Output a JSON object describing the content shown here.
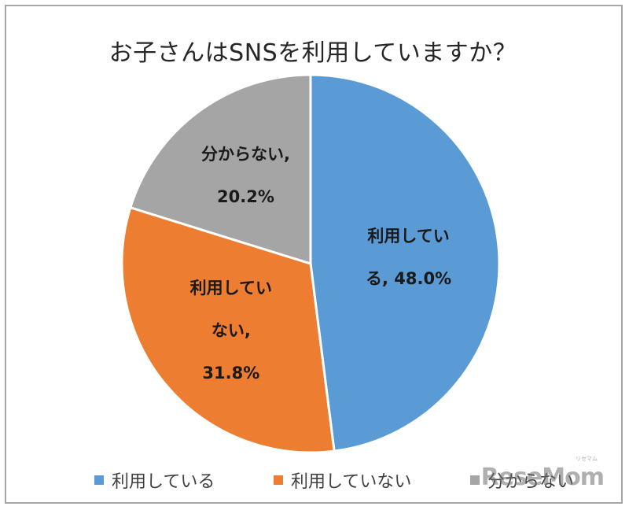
{
  "chart_data": {
    "type": "pie",
    "title": "お子さんはSNSを利用していますか？",
    "slices": [
      {
        "name": "利用している",
        "value": 48.0,
        "color": "#5b9bd5",
        "label_lines": [
          "利用してい",
          "る, 48.0%"
        ]
      },
      {
        "name": "利用していない",
        "value": 31.8,
        "color": "#ed7d31",
        "label_lines": [
          "利用してい",
          "ない,",
          "31.8%"
        ]
      },
      {
        "name": "分からない",
        "value": 20.2,
        "color": "#a5a5a5",
        "label_lines": [
          "分からない,",
          "20.2%"
        ]
      }
    ],
    "start_angle": "12 o'clock",
    "direction": "clockwise",
    "legend_position": "bottom"
  },
  "watermark": {
    "text": "ReseMom",
    "sub": "リセマム"
  }
}
